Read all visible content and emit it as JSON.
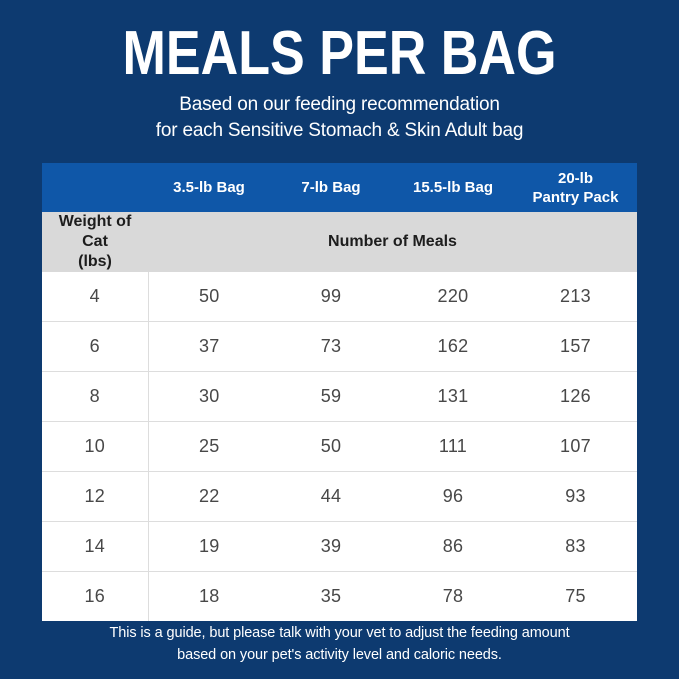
{
  "header": {
    "title": "MEALS PER BAG",
    "subtitle_line1": "Based on our feeding recommendation",
    "subtitle_line2": "for each Sensitive Stomach & Skin Adult bag"
  },
  "table_labels": {
    "bag_columns": [
      "3.5-lb Bag",
      "7-lb Bag",
      "15.5-lb Bag",
      "20-lb\nPantry Pack"
    ],
    "weight_header": "Weight of Cat\n(lbs)",
    "meals_header": "Number of Meals"
  },
  "footer": {
    "line1": "This is a guide, but please talk with your vet to adjust the feeding amount",
    "line2": "based on your pet's activity level and caloric needs."
  },
  "colors": {
    "background_navy": "#0d3a70",
    "header_row_blue": "#0f57a8",
    "subheader_gray": "#d9d9d9",
    "body_cell_white": "#ffffff",
    "cell_text": "#484848",
    "title_text": "#ffffff",
    "divider_gray": "#dddddd"
  },
  "chart_data": {
    "type": "table",
    "title": "MEALS PER BAG",
    "subtitle": "Based on our feeding recommendation for each Sensitive Stomach & Skin Adult bag",
    "row_header_label": "Weight of Cat (lbs)",
    "value_group_label": "Number of Meals",
    "columns": [
      "3.5-lb Bag",
      "7-lb Bag",
      "15.5-lb Bag",
      "20-lb Pantry Pack"
    ],
    "weights_lbs": [
      4,
      6,
      8,
      10,
      12,
      14,
      16
    ],
    "series": [
      {
        "name": "3.5-lb Bag",
        "values": [
          50,
          37,
          30,
          25,
          22,
          19,
          18
        ]
      },
      {
        "name": "7-lb Bag",
        "values": [
          99,
          73,
          59,
          50,
          44,
          39,
          35
        ]
      },
      {
        "name": "15.5-lb Bag",
        "values": [
          220,
          162,
          131,
          111,
          96,
          86,
          78
        ]
      },
      {
        "name": "20-lb Pantry Pack",
        "values": [
          213,
          157,
          126,
          107,
          93,
          83,
          75
        ]
      }
    ],
    "note": "This is a guide, but please talk with your vet to adjust the feeding amount based on your pet's activity level and caloric needs."
  }
}
